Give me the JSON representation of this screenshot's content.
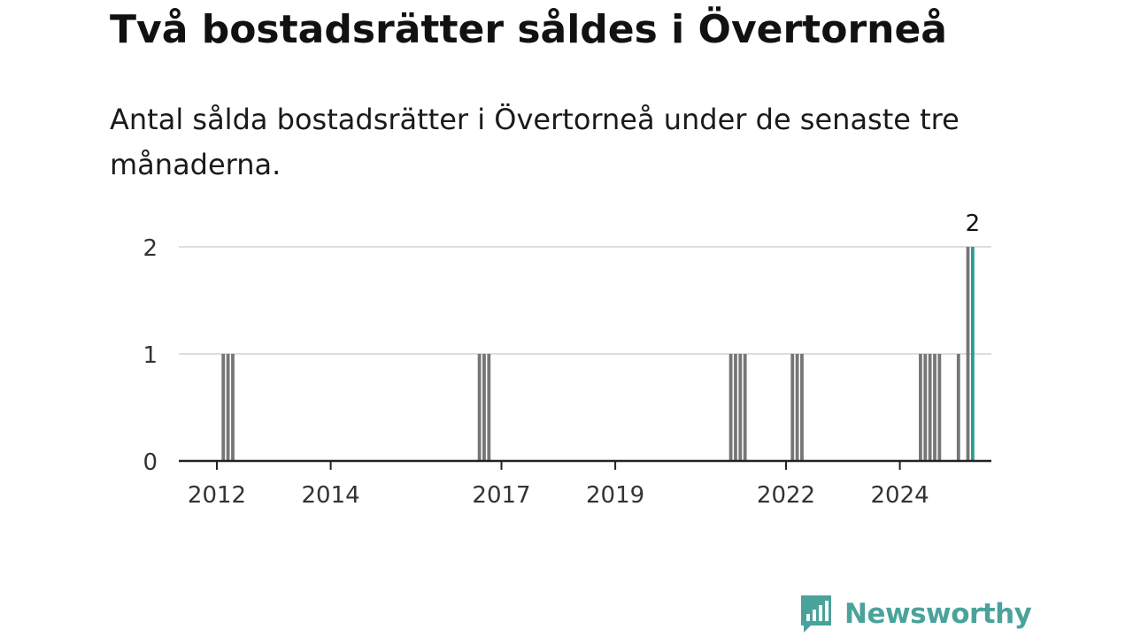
{
  "header": {
    "title": "Två bostadsrätter såldes i Övertorneå",
    "subtitle": "Antal sålda bostadsrätter i Övertorneå under de senaste tre månaderna."
  },
  "chart_data": {
    "type": "bar",
    "title": "Två bostadsrätter såldes i Övertorneå",
    "subtitle": "Antal sålda bostadsrätter i Övertorneå under de senaste tre månaderna.",
    "ylim": [
      0,
      2
    ],
    "yticks": [
      0,
      1,
      2
    ],
    "xticks": [
      "2012",
      "2014",
      "2017",
      "2019",
      "2022",
      "2024"
    ],
    "grid": true,
    "legend": "none",
    "series": [
      {
        "values": [
          {
            "x": "2012-02",
            "y": 1
          },
          {
            "x": "2012-03",
            "y": 1
          },
          {
            "x": "2012-04",
            "y": 1
          },
          {
            "x": "2016-08",
            "y": 1
          },
          {
            "x": "2016-09",
            "y": 1
          },
          {
            "x": "2016-10",
            "y": 1
          },
          {
            "x": "2021-01",
            "y": 1
          },
          {
            "x": "2021-02",
            "y": 1
          },
          {
            "x": "2021-03",
            "y": 1
          },
          {
            "x": "2021-04",
            "y": 1
          },
          {
            "x": "2022-02",
            "y": 1
          },
          {
            "x": "2022-03",
            "y": 1
          },
          {
            "x": "2022-04",
            "y": 1
          },
          {
            "x": "2024-05",
            "y": 1
          },
          {
            "x": "2024-06",
            "y": 1
          },
          {
            "x": "2024-07",
            "y": 1
          },
          {
            "x": "2024-08",
            "y": 1
          },
          {
            "x": "2024-09",
            "y": 1
          },
          {
            "x": "2025-01",
            "y": 1
          },
          {
            "x": "2025-03",
            "y": 2
          },
          {
            "x": "2025-04",
            "y": 2
          }
        ]
      }
    ],
    "annotations": [
      {
        "x": "2025-04",
        "text": "2"
      }
    ],
    "colors": {
      "bar": "#767676",
      "highlight": "#2a9d8f",
      "grid": "#dddddd",
      "axis": "#222222"
    }
  },
  "branding": {
    "name": "Newsworthy",
    "logo_icon": "newsworthy-logo-icon",
    "color": "#4aa39b"
  }
}
